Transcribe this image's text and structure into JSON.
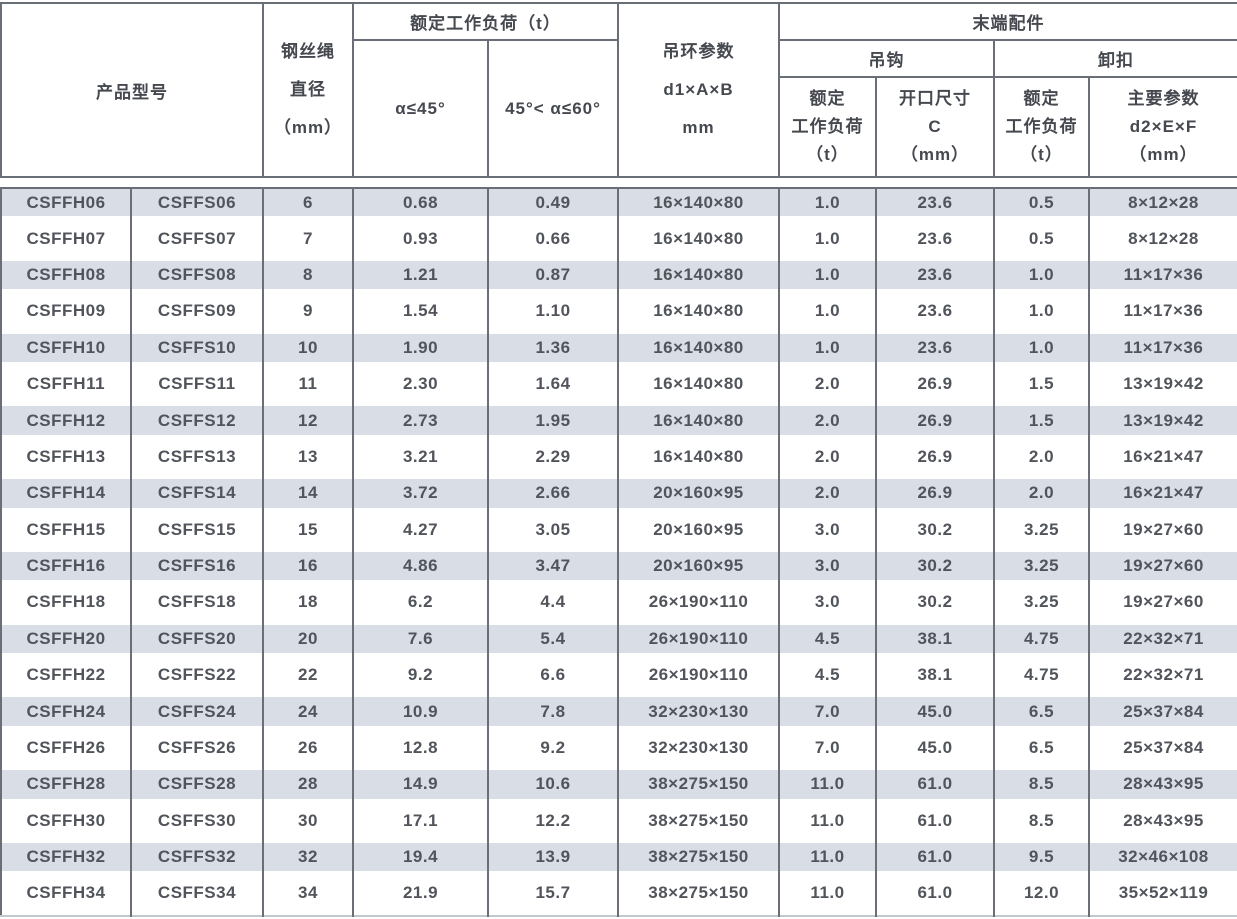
{
  "colors": {
    "stripe": "#d8dde6",
    "border_dark": "#6a6f77",
    "border_light": "#c3c8cf",
    "text": "#51555b",
    "header_text": "#45494f",
    "background": "#ffffff"
  },
  "table": {
    "header": {
      "product_model": "产品型号",
      "wire_rope_diameter_lines": [
        "钢丝绳",
        "直径",
        "（mm）"
      ],
      "rated_working_load": "额定工作负荷（t）",
      "angle_le45": "α≤45°",
      "angle_45_60": "45°< α≤60°",
      "lifting_ring_lines": [
        "吊环参数",
        "d1×A×B",
        "mm"
      ],
      "end_fittings": "末端配件",
      "hook": "吊钩",
      "shackle": "卸扣",
      "hook_load_lines": [
        "额定",
        "工作负荷",
        "（t）"
      ],
      "hook_opening_lines": [
        "开口尺寸",
        "C",
        "（mm）"
      ],
      "shackle_load_lines": [
        "额定",
        "工作负荷",
        "（t）"
      ],
      "shackle_params_lines": [
        "主要参数",
        "d2×E×F",
        "（mm）"
      ]
    },
    "rows": [
      [
        "CSFFH06",
        "CSFFS06",
        "6",
        "0.68",
        "0.49",
        "16×140×80",
        "1.0",
        "23.6",
        "0.5",
        "8×12×28"
      ],
      [
        "CSFFH07",
        "CSFFS07",
        "7",
        "0.93",
        "0.66",
        "16×140×80",
        "1.0",
        "23.6",
        "0.5",
        "8×12×28"
      ],
      [
        "CSFFH08",
        "CSFFS08",
        "8",
        "1.21",
        "0.87",
        "16×140×80",
        "1.0",
        "23.6",
        "1.0",
        "11×17×36"
      ],
      [
        "CSFFH09",
        "CSFFS09",
        "9",
        "1.54",
        "1.10",
        "16×140×80",
        "1.0",
        "23.6",
        "1.0",
        "11×17×36"
      ],
      [
        "CSFFH10",
        "CSFFS10",
        "10",
        "1.90",
        "1.36",
        "16×140×80",
        "1.0",
        "23.6",
        "1.0",
        "11×17×36"
      ],
      [
        "CSFFH11",
        "CSFFS11",
        "11",
        "2.30",
        "1.64",
        "16×140×80",
        "2.0",
        "26.9",
        "1.5",
        "13×19×42"
      ],
      [
        "CSFFH12",
        "CSFFS12",
        "12",
        "2.73",
        "1.95",
        "16×140×80",
        "2.0",
        "26.9",
        "1.5",
        "13×19×42"
      ],
      [
        "CSFFH13",
        "CSFFS13",
        "13",
        "3.21",
        "2.29",
        "16×140×80",
        "2.0",
        "26.9",
        "2.0",
        "16×21×47"
      ],
      [
        "CSFFH14",
        "CSFFS14",
        "14",
        "3.72",
        "2.66",
        "20×160×95",
        "2.0",
        "26.9",
        "2.0",
        "16×21×47"
      ],
      [
        "CSFFH15",
        "CSFFS15",
        "15",
        "4.27",
        "3.05",
        "20×160×95",
        "3.0",
        "30.2",
        "3.25",
        "19×27×60"
      ],
      [
        "CSFFH16",
        "CSFFS16",
        "16",
        "4.86",
        "3.47",
        "20×160×95",
        "3.0",
        "30.2",
        "3.25",
        "19×27×60"
      ],
      [
        "CSFFH18",
        "CSFFS18",
        "18",
        "6.2",
        "4.4",
        "26×190×110",
        "3.0",
        "30.2",
        "3.25",
        "19×27×60"
      ],
      [
        "CSFFH20",
        "CSFFS20",
        "20",
        "7.6",
        "5.4",
        "26×190×110",
        "4.5",
        "38.1",
        "4.75",
        "22×32×71"
      ],
      [
        "CSFFH22",
        "CSFFS22",
        "22",
        "9.2",
        "6.6",
        "26×190×110",
        "4.5",
        "38.1",
        "4.75",
        "22×32×71"
      ],
      [
        "CSFFH24",
        "CSFFS24",
        "24",
        "10.9",
        "7.8",
        "32×230×130",
        "7.0",
        "45.0",
        "6.5",
        "25×37×84"
      ],
      [
        "CSFFH26",
        "CSFFS26",
        "26",
        "12.8",
        "9.2",
        "32×230×130",
        "7.0",
        "45.0",
        "6.5",
        "25×37×84"
      ],
      [
        "CSFFH28",
        "CSFFS28",
        "28",
        "14.9",
        "10.6",
        "38×275×150",
        "11.0",
        "61.0",
        "8.5",
        "28×43×95"
      ],
      [
        "CSFFH30",
        "CSFFS30",
        "30",
        "17.1",
        "12.2",
        "38×275×150",
        "11.0",
        "61.0",
        "8.5",
        "28×43×95"
      ],
      [
        "CSFFH32",
        "CSFFS32",
        "32",
        "19.4",
        "13.9",
        "38×275×150",
        "11.0",
        "61.0",
        "9.5",
        "32×46×108"
      ],
      [
        "CSFFH34",
        "CSFFS34",
        "34",
        "21.9",
        "15.7",
        "38×275×150",
        "11.0",
        "61.0",
        "12.0",
        "35×52×119"
      ]
    ]
  }
}
